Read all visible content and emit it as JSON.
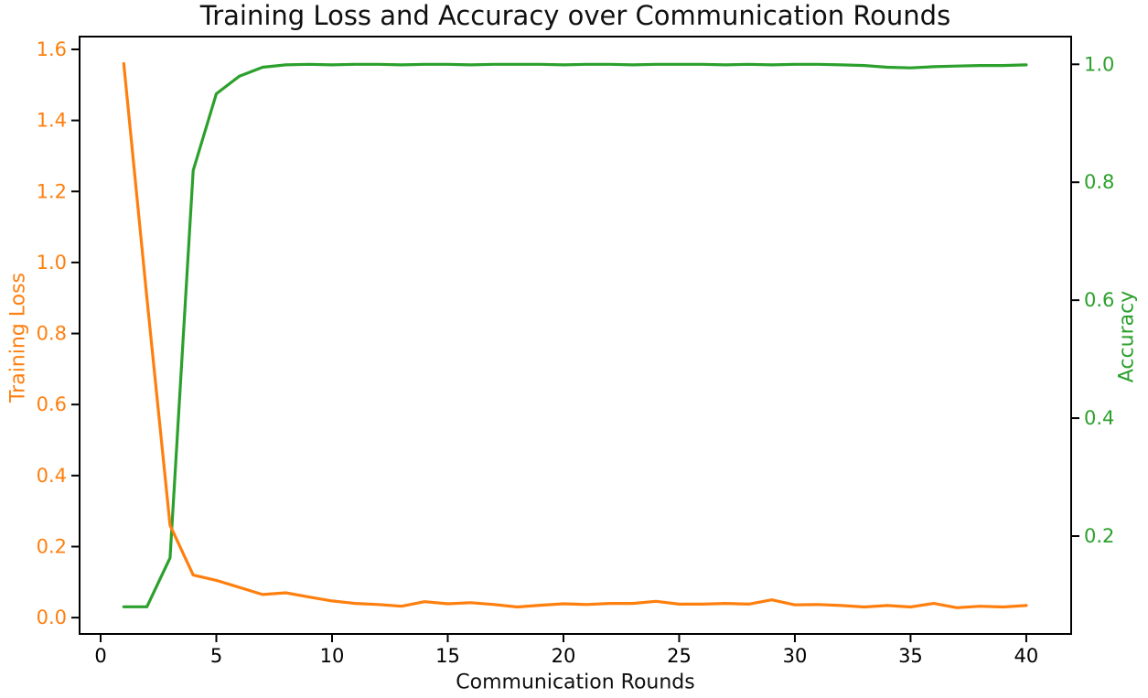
{
  "figure": {
    "title": "Training Loss and Accuracy over Communication Rounds",
    "xlabel": "Communication Rounds",
    "ylabel_left": "Training Loss",
    "ylabel_right": "Accuracy"
  },
  "colors": {
    "loss": "#ff7f0e",
    "accuracy": "#2ca02c",
    "axis": "#000000",
    "title_text": "#101010",
    "background": "#ffffff"
  },
  "chart_data": {
    "type": "line",
    "title": "Training Loss and Accuracy over Communication Rounds",
    "xlabel": "Communication Rounds",
    "ylabel_left": "Training Loss",
    "ylabel_right": "Accuracy",
    "grid": false,
    "legend": "none",
    "xlim": [
      -0.91,
      41.94
    ],
    "ylim_left": [
      -0.046,
      1.636
    ],
    "ylim_right": [
      0.034,
      1.047
    ],
    "x_ticks": [
      0,
      5,
      10,
      15,
      20,
      25,
      30,
      35,
      40
    ],
    "y_ticks_left": [
      0.0,
      0.2,
      0.4,
      0.6,
      0.8,
      1.0,
      1.2,
      1.4,
      1.6
    ],
    "y_ticks_left_labels": [
      "0.0",
      "0.2",
      "0.4",
      "0.6",
      "0.8",
      "1.0",
      "1.2",
      "1.4",
      "1.6"
    ],
    "y_ticks_right": [
      0.2,
      0.4,
      0.6,
      0.8,
      1.0
    ],
    "y_ticks_right_labels": [
      "0.2",
      "0.4",
      "0.6",
      "0.8",
      "1.0"
    ],
    "x": [
      1,
      2,
      3,
      4,
      5,
      6,
      7,
      8,
      9,
      10,
      11,
      12,
      13,
      14,
      15,
      16,
      17,
      18,
      19,
      20,
      21,
      22,
      23,
      24,
      25,
      26,
      27,
      28,
      29,
      30,
      31,
      32,
      33,
      34,
      35,
      36,
      37,
      38,
      39,
      40
    ],
    "series": [
      {
        "name": "Training Loss",
        "axis": "left",
        "color": "#ff7f0e",
        "values": [
          1.56,
          0.9,
          0.26,
          0.12,
          0.105,
          0.085,
          0.065,
          0.07,
          0.058,
          0.047,
          0.04,
          0.037,
          0.032,
          0.045,
          0.039,
          0.042,
          0.037,
          0.03,
          0.035,
          0.039,
          0.037,
          0.04,
          0.04,
          0.046,
          0.038,
          0.038,
          0.04,
          0.038,
          0.05,
          0.036,
          0.037,
          0.034,
          0.03,
          0.034,
          0.03,
          0.04,
          0.028,
          0.032,
          0.03,
          0.034
        ]
      },
      {
        "name": "Accuracy",
        "axis": "right",
        "color": "#2ca02c",
        "values": [
          0.08,
          0.08,
          0.163,
          0.82,
          0.95,
          0.98,
          0.995,
          0.999,
          1.0,
          0.999,
          1.0,
          1.0,
          0.999,
          1.0,
          1.0,
          0.999,
          1.0,
          1.0,
          1.0,
          0.999,
          1.0,
          1.0,
          0.999,
          1.0,
          1.0,
          1.0,
          0.999,
          1.0,
          0.999,
          1.0,
          1.0,
          0.999,
          0.998,
          0.995,
          0.994,
          0.996,
          0.997,
          0.998,
          0.998,
          0.999
        ]
      }
    ]
  }
}
